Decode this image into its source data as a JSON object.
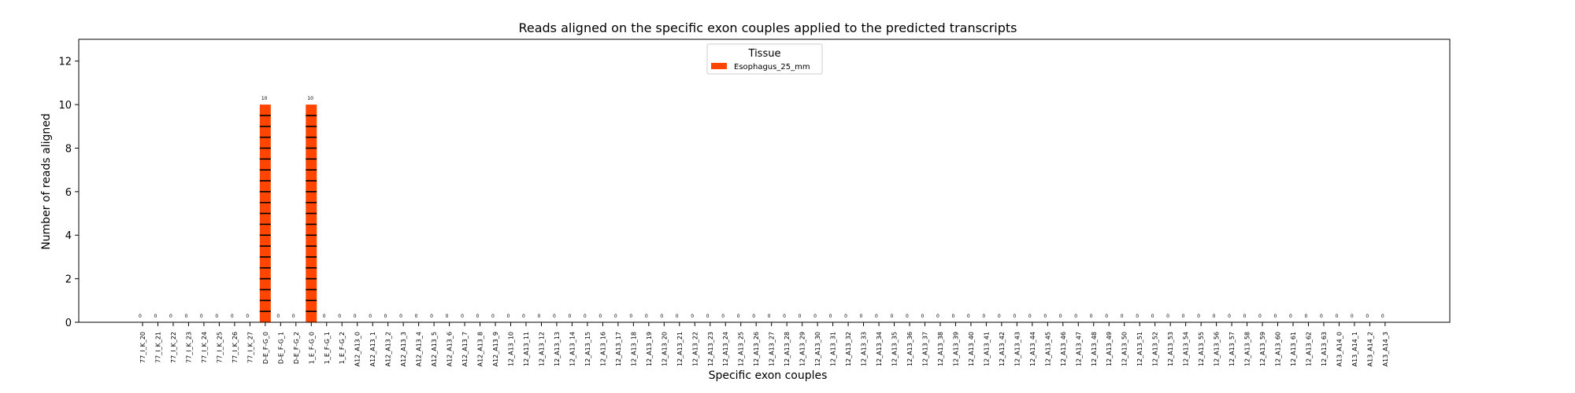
{
  "chart_data": {
    "type": "bar",
    "title": "Reads aligned on the specific exon couples applied to the predicted transcripts",
    "xlabel": "Specific exon couples",
    "ylabel": "Number of reads aligned",
    "ylim": [
      0,
      13
    ],
    "yticks": [
      0,
      2,
      4,
      6,
      8,
      10,
      12
    ],
    "grid": false,
    "legend": {
      "title": "Tissue",
      "position": "top-center"
    },
    "categories": [
      "77_I_K_20",
      "77_I_K_21",
      "77_I_K_22",
      "77_I_K_23",
      "77_I_K_24",
      "77_I_K_25",
      "77_I_K_26",
      "77_I_K_27",
      "D-E_F-G_0",
      "D-E_F-G_1",
      "D-E_F-G_2",
      "1_E_F-G_0",
      "1_E_F-G_1",
      "1_E_F-G_2",
      "A12_A13_0",
      "A12_A13_1",
      "A12_A13_2",
      "A12_A13_3",
      "A12_A13_4",
      "A12_A13_5",
      "A12_A13_6",
      "A12_A13_7",
      "A12_A13_8",
      "A12_A13_9",
      "12_A13_10",
      "12_A13_11",
      "12_A13_12",
      "12_A13_13",
      "12_A13_14",
      "12_A13_15",
      "12_A13_16",
      "12_A13_17",
      "12_A13_18",
      "12_A13_19",
      "12_A13_20",
      "12_A13_21",
      "12_A13_22",
      "12_A13_23",
      "12_A13_24",
      "12_A13_25",
      "12_A13_26",
      "12_A13_27",
      "12_A13_28",
      "12_A13_29",
      "12_A13_30",
      "12_A13_31",
      "12_A13_32",
      "12_A13_33",
      "12_A13_34",
      "12_A13_35",
      "12_A13_36",
      "12_A13_37",
      "12_A13_38",
      "12_A13_39",
      "12_A13_40",
      "12_A13_41",
      "12_A13_42",
      "12_A13_43",
      "12_A13_44",
      "12_A13_45",
      "12_A13_46",
      "12_A13_47",
      "12_A13_48",
      "12_A13_49",
      "12_A13_50",
      "12_A13_51",
      "12_A13_52",
      "12_A13_53",
      "12_A13_54",
      "12_A13_55",
      "12_A13_56",
      "12_A13_57",
      "12_A13_58",
      "12_A13_59",
      "12_A13_60",
      "12_A13_61",
      "12_A13_62",
      "12_A13_63",
      "A13_A14_0",
      "A13_A14_1",
      "A13_A14_2",
      "A13_A14_3"
    ],
    "series": [
      {
        "name": "Esophagus_25_mm",
        "color": "#ff4500",
        "values": [
          0,
          0,
          0,
          0,
          0,
          0,
          0,
          0,
          10,
          0,
          0,
          10,
          0,
          0,
          0,
          0,
          0,
          0,
          0,
          0,
          0,
          0,
          0,
          0,
          0,
          0,
          0,
          0,
          0,
          0,
          0,
          0,
          0,
          0,
          0,
          0,
          0,
          0,
          0,
          0,
          0,
          0,
          0,
          0,
          0,
          0,
          0,
          0,
          0,
          0,
          0,
          0,
          0,
          0,
          0,
          0,
          0,
          0,
          0,
          0,
          0,
          0,
          0,
          0,
          0,
          0,
          0,
          0,
          0,
          0,
          0,
          0,
          0,
          0,
          0,
          0,
          0,
          0,
          0,
          0,
          0,
          0
        ]
      }
    ]
  }
}
